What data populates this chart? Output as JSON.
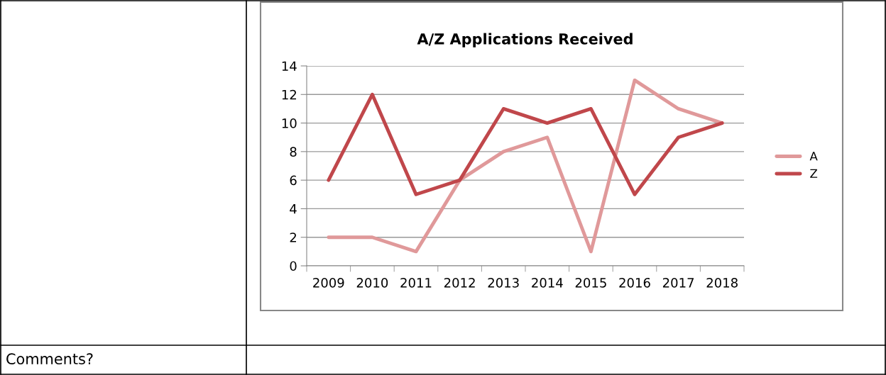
{
  "chart_data": {
    "type": "line",
    "title": "A/Z Applications Received",
    "categories": [
      "2009",
      "2010",
      "2011",
      "2012",
      "2013",
      "2014",
      "2015",
      "2016",
      "2017",
      "2018"
    ],
    "series": [
      {
        "name": "A",
        "color": "#e0999a",
        "values": [
          2,
          2,
          1,
          6,
          8,
          9,
          1,
          13,
          11,
          10
        ]
      },
      {
        "name": "Z",
        "color": "#c0474b",
        "values": [
          6,
          12,
          5,
          6,
          11,
          10,
          11,
          5,
          9,
          10
        ]
      }
    ],
    "ylim": [
      0,
      14
    ],
    "yticks": [
      0,
      2,
      4,
      6,
      8,
      10,
      12,
      14
    ],
    "grid": "y",
    "legend": "right",
    "marker": "none",
    "line_style": "solid",
    "annotations": [
      "Comments?"
    ]
  }
}
